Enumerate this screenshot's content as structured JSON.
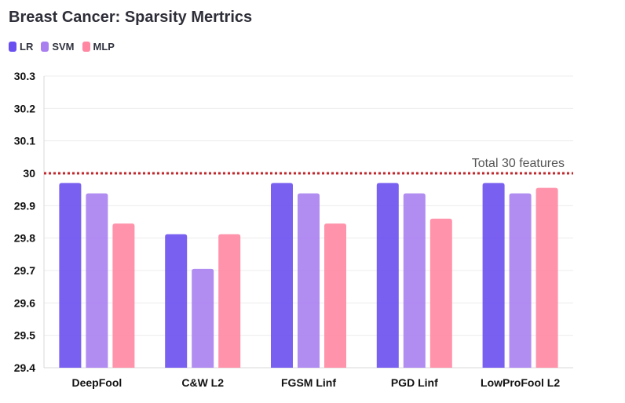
{
  "chart_data": {
    "type": "bar",
    "title": "Breast Cancer: Sparsity Mertrics",
    "xlabel": "",
    "ylabel": "",
    "categories": [
      "DeepFool",
      "C&W L2",
      "FGSM Linf",
      "PGD Linf",
      "LowProFool L2"
    ],
    "series": [
      {
        "name": "LR",
        "color": "#6a4ff0",
        "values": [
          29.97,
          29.812,
          29.97,
          29.97,
          29.97
        ]
      },
      {
        "name": "SVM",
        "color": "#a97ff0",
        "values": [
          29.938,
          29.705,
          29.938,
          29.938,
          29.938
        ]
      },
      {
        "name": "MLP",
        "color": "#ff87a2",
        "values": [
          29.845,
          29.812,
          29.845,
          29.86,
          29.955
        ]
      }
    ],
    "ylim": [
      29.4,
      30.3
    ],
    "yticks": [
      "29.4",
      "29.5",
      "29.6",
      "29.7",
      "29.8",
      "29.9",
      "30",
      "30.1",
      "30.2",
      "30.3"
    ],
    "grid": true,
    "legend_position": "top-left",
    "reference_line": {
      "value": 30,
      "label": "Total 30 features",
      "color": "#c0282d",
      "style": "dotted"
    }
  }
}
